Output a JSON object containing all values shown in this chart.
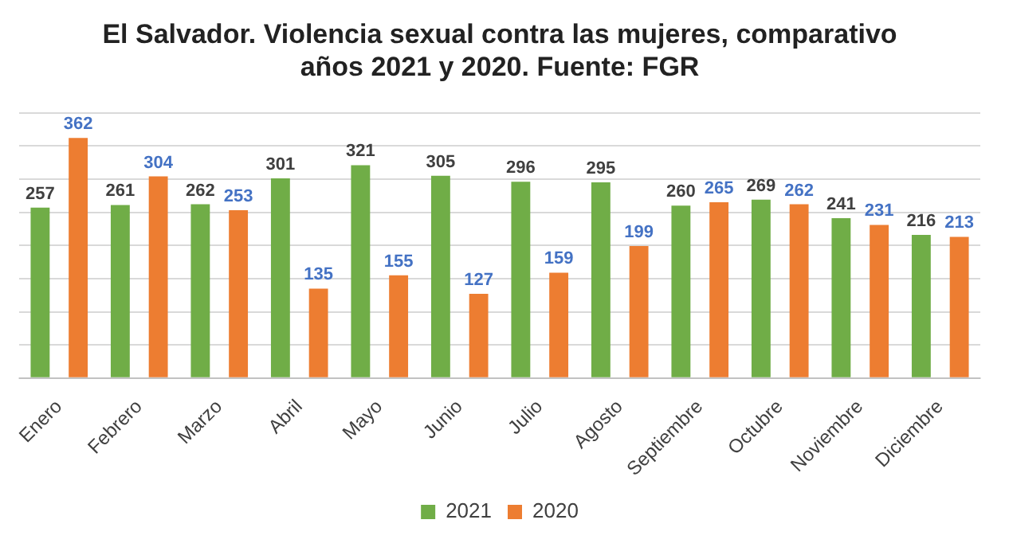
{
  "chart_data": {
    "type": "bar",
    "title": "El Salvador. Violencia sexual contra las mujeres, comparativo\naños 2021 y 2020. Fuente: FGR",
    "categories": [
      "Enero",
      "Febrero",
      "Marzo",
      "Abril",
      "Mayo",
      "Junio",
      "Julio",
      "Agosto",
      "Septiembre",
      "Octubre",
      "Noviembre",
      "Diciembre"
    ],
    "series": [
      {
        "name": "2021",
        "color": "#70ad47",
        "values": [
          257,
          261,
          262,
          301,
          321,
          305,
          296,
          295,
          260,
          269,
          241,
          216
        ]
      },
      {
        "name": "2020",
        "color": "#ed7d31",
        "values": [
          362,
          304,
          253,
          135,
          155,
          127,
          159,
          199,
          265,
          262,
          231,
          213
        ]
      }
    ],
    "ylim": [
      0,
      400
    ],
    "yticks": [
      {
        "value": 0,
        "label": null
      },
      {
        "value": 50,
        "label": null
      },
      {
        "value": 100,
        "label": null
      },
      {
        "value": 150,
        "label": null
      },
      {
        "value": 200,
        "label": null
      },
      {
        "value": 250,
        "label": null
      },
      {
        "value": 300,
        "label": null
      },
      {
        "value": 350,
        "label": null
      },
      {
        "value": 400,
        "label": null
      }
    ],
    "tick_labels": "x",
    "grid": "y",
    "legend": "bottom",
    "data_labels": true
  }
}
